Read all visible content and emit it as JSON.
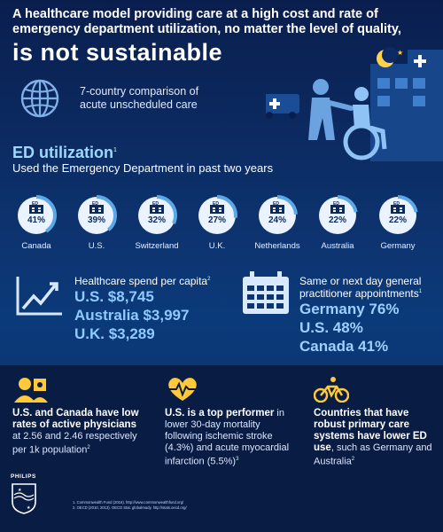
{
  "header": {
    "line1": "A healthcare model providing care at a high cost and rate of",
    "line2": "emergency department utilization, no matter the level of quality,",
    "big": "is not sustainable",
    "comparison_line1": "7-country comparison of",
    "comparison_line2": "acute unscheduled care"
  },
  "ed": {
    "title": "ED utilization",
    "title_fn": "1",
    "subtitle": "Used the Emergency Department in past two years",
    "icon_label": "ED",
    "countries": [
      {
        "name": "Canada",
        "pct": "41%",
        "value": 41
      },
      {
        "name": "U.S.",
        "pct": "39%",
        "value": 39
      },
      {
        "name": "Switzerland",
        "pct": "32%",
        "value": 32
      },
      {
        "name": "U.K.",
        "pct": "27%",
        "value": 27
      },
      {
        "name": "Netherlands",
        "pct": "24%",
        "value": 24
      },
      {
        "name": "Australia",
        "pct": "22%",
        "value": 22
      },
      {
        "name": "Germany",
        "pct": "22%",
        "value": 22
      }
    ]
  },
  "spend": {
    "title": "Healthcare spend per capita",
    "fn": "2",
    "lines": [
      "U.S. $8,745",
      "Australia $3,997",
      "U.K. $3,289"
    ]
  },
  "gp": {
    "title1": "Same or next day general",
    "title2": "practitioner appointments",
    "fn": "1",
    "lines": [
      "Germany 76%",
      "U.S. 48%",
      "Canada 41%"
    ]
  },
  "facts": [
    {
      "bold": "U.S. and Canada have low rates of active physicians",
      "rest": " at 2.56 and 2.46 respectively per 1k population",
      "fn": "2"
    },
    {
      "bold": "U.S. is a top performer",
      "rest": " in lower 30-day mortality following ischemic stroke (4.3%) and acute myocardial infarction (5.5%)",
      "fn": "3"
    },
    {
      "bold": "Countries that have robust primary care systems have lower ED use",
      "rest": ", such as Germany and Australia",
      "fn": "2"
    }
  ],
  "brand": "PHILIPS",
  "footnotes": [
    "1. Commonwealth Fund (2016). http://www.commonwealthfund.org/",
    "2. OECD (2010, 2013). OECD Stat. globalready. http://stats.oecd.org/"
  ],
  "colors": {
    "accent": "#8fcaff",
    "ring": "#5aa8e8",
    "dark": "#091c44"
  }
}
